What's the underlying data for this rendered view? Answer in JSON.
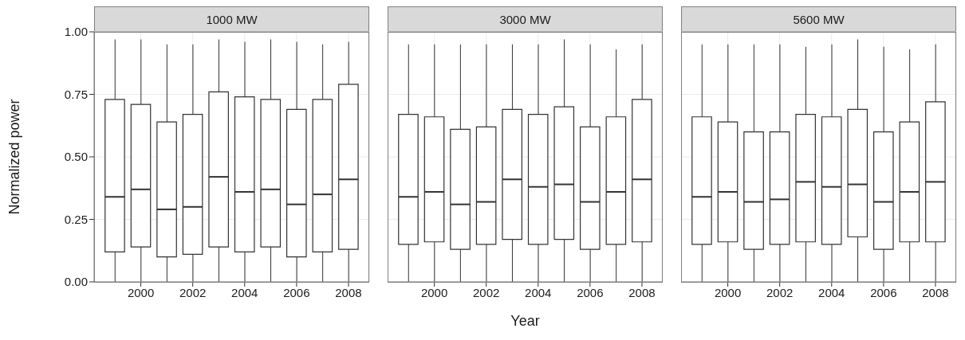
{
  "chart_data": [
    {
      "type": "box",
      "title": "1000 MW",
      "ylabel": "Normalized power",
      "x": [
        1999,
        2000,
        2001,
        2002,
        2003,
        2004,
        2005,
        2006,
        2007,
        2008
      ],
      "xlim": [
        1998.2,
        2008.8
      ],
      "xticks": [
        2000,
        2002,
        2004,
        2006,
        2008
      ],
      "ylim": [
        0,
        1
      ],
      "yticks": [
        {
          "value": 0,
          "label": "0.00"
        },
        {
          "value": 0.25,
          "label": "0.25"
        },
        {
          "value": 0.5,
          "label": "0.50"
        },
        {
          "value": 0.75,
          "label": "0.75"
        },
        {
          "value": 1,
          "label": "1.00"
        }
      ],
      "grid": true,
      "boxes": [
        {
          "low": 0,
          "q1": 0.12,
          "median": 0.34,
          "q3": 0.73,
          "high": 0.97
        },
        {
          "low": 0,
          "q1": 0.14,
          "median": 0.37,
          "q3": 0.71,
          "high": 0.97
        },
        {
          "low": 0,
          "q1": 0.1,
          "median": 0.29,
          "q3": 0.64,
          "high": 0.95
        },
        {
          "low": 0,
          "q1": 0.11,
          "median": 0.3,
          "q3": 0.67,
          "high": 0.95
        },
        {
          "low": 0,
          "q1": 0.14,
          "median": 0.42,
          "q3": 0.76,
          "high": 0.97
        },
        {
          "low": 0,
          "q1": 0.12,
          "median": 0.36,
          "q3": 0.74,
          "high": 0.96
        },
        {
          "low": 0,
          "q1": 0.14,
          "median": 0.37,
          "q3": 0.73,
          "high": 0.97
        },
        {
          "low": 0,
          "q1": 0.1,
          "median": 0.31,
          "q3": 0.69,
          "high": 0.96
        },
        {
          "low": 0,
          "q1": 0.12,
          "median": 0.35,
          "q3": 0.73,
          "high": 0.95
        },
        {
          "low": 0,
          "q1": 0.13,
          "median": 0.41,
          "q3": 0.79,
          "high": 0.96
        }
      ]
    },
    {
      "type": "box",
      "title": "3000 MW",
      "xlabel": "Year",
      "x": [
        1999,
        2000,
        2001,
        2002,
        2003,
        2004,
        2005,
        2006,
        2007,
        2008
      ],
      "xlim": [
        1998.2,
        2008.8
      ],
      "xticks": [
        2000,
        2002,
        2004,
        2006,
        2008
      ],
      "ylim": [
        0,
        1
      ],
      "yticks": [
        0,
        0.25,
        0.5,
        0.75,
        1
      ],
      "grid": true,
      "tick_labels": "x",
      "boxes": [
        {
          "low": 0,
          "q1": 0.15,
          "median": 0.34,
          "q3": 0.67,
          "high": 0.95
        },
        {
          "low": 0,
          "q1": 0.16,
          "median": 0.36,
          "q3": 0.66,
          "high": 0.95
        },
        {
          "low": 0,
          "q1": 0.13,
          "median": 0.31,
          "q3": 0.61,
          "high": 0.95
        },
        {
          "low": 0,
          "q1": 0.15,
          "median": 0.32,
          "q3": 0.62,
          "high": 0.95
        },
        {
          "low": 0,
          "q1": 0.17,
          "median": 0.41,
          "q3": 0.69,
          "high": 0.95
        },
        {
          "low": 0,
          "q1": 0.15,
          "median": 0.38,
          "q3": 0.67,
          "high": 0.95
        },
        {
          "low": 0,
          "q1": 0.17,
          "median": 0.39,
          "q3": 0.7,
          "high": 0.97
        },
        {
          "low": 0,
          "q1": 0.13,
          "median": 0.32,
          "q3": 0.62,
          "high": 0.95
        },
        {
          "low": 0,
          "q1": 0.15,
          "median": 0.36,
          "q3": 0.66,
          "high": 0.93
        },
        {
          "low": 0,
          "q1": 0.16,
          "median": 0.41,
          "q3": 0.73,
          "high": 0.95
        }
      ]
    },
    {
      "type": "box",
      "title": "5600 MW",
      "x": [
        1999,
        2000,
        2001,
        2002,
        2003,
        2004,
        2005,
        2006,
        2007,
        2008
      ],
      "xlim": [
        1998.2,
        2008.8
      ],
      "xticks": [
        2000,
        2002,
        2004,
        2006,
        2008
      ],
      "ylim": [
        0,
        1
      ],
      "yticks": [
        0,
        0.25,
        0.5,
        0.75,
        1
      ],
      "grid": true,
      "tick_labels": "x",
      "boxes": [
        {
          "low": 0,
          "q1": 0.15,
          "median": 0.34,
          "q3": 0.66,
          "high": 0.95
        },
        {
          "low": 0,
          "q1": 0.16,
          "median": 0.36,
          "q3": 0.64,
          "high": 0.95
        },
        {
          "low": 0,
          "q1": 0.13,
          "median": 0.32,
          "q3": 0.6,
          "high": 0.95
        },
        {
          "low": 0,
          "q1": 0.15,
          "median": 0.33,
          "q3": 0.6,
          "high": 0.95
        },
        {
          "low": 0,
          "q1": 0.16,
          "median": 0.4,
          "q3": 0.67,
          "high": 0.94
        },
        {
          "low": 0,
          "q1": 0.15,
          "median": 0.38,
          "q3": 0.66,
          "high": 0.95
        },
        {
          "low": 0,
          "q1": 0.18,
          "median": 0.39,
          "q3": 0.69,
          "high": 0.97
        },
        {
          "low": 0,
          "q1": 0.13,
          "median": 0.32,
          "q3": 0.6,
          "high": 0.94
        },
        {
          "low": 0,
          "q1": 0.16,
          "median": 0.36,
          "q3": 0.64,
          "high": 0.93
        },
        {
          "low": 0,
          "q1": 0.16,
          "median": 0.4,
          "q3": 0.72,
          "high": 0.95
        }
      ]
    }
  ]
}
